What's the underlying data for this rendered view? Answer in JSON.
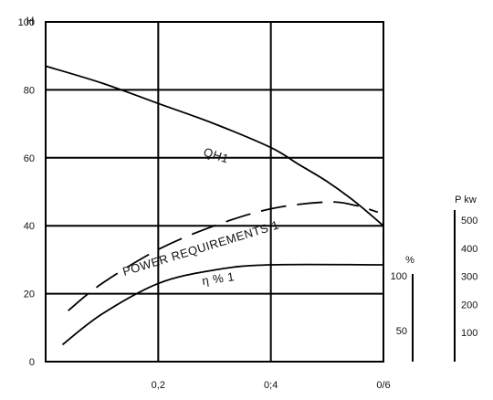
{
  "chart_data": {
    "type": "line",
    "xlim": [
      0,
      0.6
    ],
    "ylim": [
      0,
      100
    ],
    "y_axis_label": "H",
    "x_ticks": [
      {
        "value": 0.2,
        "label": "0,2"
      },
      {
        "value": 0.4,
        "label": "0;4"
      },
      {
        "value": 0.6,
        "label": "0/6"
      }
    ],
    "y_ticks": [
      {
        "value": 0,
        "label": "0"
      },
      {
        "value": 20,
        "label": "20"
      },
      {
        "value": 40,
        "label": "40"
      },
      {
        "value": 60,
        "label": "60"
      },
      {
        "value": 80,
        "label": "80"
      },
      {
        "value": 100,
        "label": "100"
      }
    ],
    "grid": true,
    "series": [
      {
        "name": "QH1",
        "style": "solid",
        "x": [
          0.0,
          0.1,
          0.2,
          0.3,
          0.4,
          0.45,
          0.5,
          0.55,
          0.6
        ],
        "y": [
          87,
          82,
          76,
          70,
          63,
          58,
          53,
          47,
          40
        ]
      },
      {
        "name": "POWER REQUIREMENTS 1",
        "style": "dashed",
        "x": [
          0.04,
          0.1,
          0.2,
          0.3,
          0.4,
          0.5,
          0.55,
          0.59
        ],
        "y": [
          15,
          23,
          33,
          40,
          45,
          47,
          46,
          44
        ]
      },
      {
        "name": "η % 1",
        "style": "solid",
        "x": [
          0.03,
          0.1,
          0.2,
          0.3,
          0.4,
          0.6
        ],
        "y": [
          5,
          14,
          23,
          27,
          28.5,
          28.5
        ]
      }
    ],
    "secondary_scales": [
      {
        "label": "%",
        "ticks": [
          {
            "value": 100,
            "label": "100"
          },
          {
            "value": 50,
            "label": "50"
          }
        ]
      },
      {
        "label": "P kw",
        "ticks": [
          {
            "value": 500,
            "label": "500"
          },
          {
            "value": 400,
            "label": "400"
          },
          {
            "value": 300,
            "label": "300"
          },
          {
            "value": 200,
            "label": "200"
          },
          {
            "value": 100,
            "label": "100"
          }
        ]
      }
    ]
  }
}
